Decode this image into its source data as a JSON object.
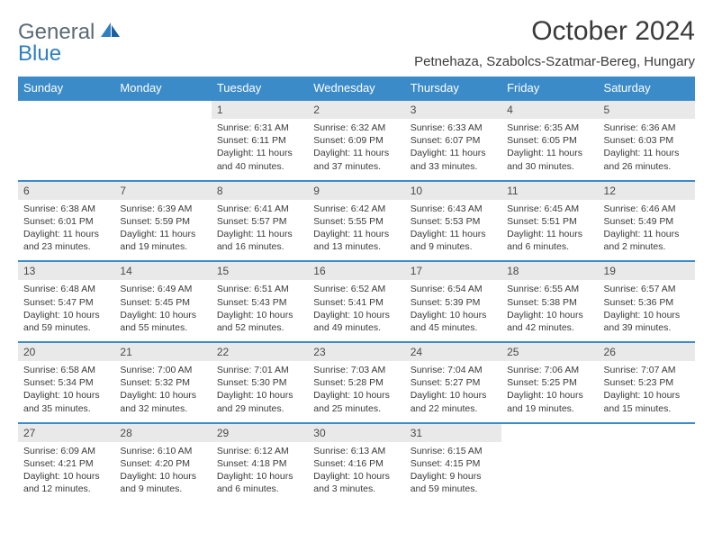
{
  "logo": {
    "general": "General",
    "blue": "Blue"
  },
  "title": "October 2024",
  "location": "Petnehaza, Szabolcs-Szatmar-Bereg, Hungary",
  "colors": {
    "header_bg": "#3b8bc9",
    "header_text": "#ffffff",
    "daynum_bg": "#e9e9e9",
    "week_border": "#3b8bc9",
    "text": "#3a3a3a",
    "logo_gray": "#5a6a76",
    "logo_blue": "#2f7fc1"
  },
  "day_labels": [
    "Sunday",
    "Monday",
    "Tuesday",
    "Wednesday",
    "Thursday",
    "Friday",
    "Saturday"
  ],
  "weeks": [
    [
      {
        "n": "",
        "sr": "",
        "ss": "",
        "dl": ""
      },
      {
        "n": "",
        "sr": "",
        "ss": "",
        "dl": ""
      },
      {
        "n": "1",
        "sr": "Sunrise: 6:31 AM",
        "ss": "Sunset: 6:11 PM",
        "dl": "Daylight: 11 hours and 40 minutes."
      },
      {
        "n": "2",
        "sr": "Sunrise: 6:32 AM",
        "ss": "Sunset: 6:09 PM",
        "dl": "Daylight: 11 hours and 37 minutes."
      },
      {
        "n": "3",
        "sr": "Sunrise: 6:33 AM",
        "ss": "Sunset: 6:07 PM",
        "dl": "Daylight: 11 hours and 33 minutes."
      },
      {
        "n": "4",
        "sr": "Sunrise: 6:35 AM",
        "ss": "Sunset: 6:05 PM",
        "dl": "Daylight: 11 hours and 30 minutes."
      },
      {
        "n": "5",
        "sr": "Sunrise: 6:36 AM",
        "ss": "Sunset: 6:03 PM",
        "dl": "Daylight: 11 hours and 26 minutes."
      }
    ],
    [
      {
        "n": "6",
        "sr": "Sunrise: 6:38 AM",
        "ss": "Sunset: 6:01 PM",
        "dl": "Daylight: 11 hours and 23 minutes."
      },
      {
        "n": "7",
        "sr": "Sunrise: 6:39 AM",
        "ss": "Sunset: 5:59 PM",
        "dl": "Daylight: 11 hours and 19 minutes."
      },
      {
        "n": "8",
        "sr": "Sunrise: 6:41 AM",
        "ss": "Sunset: 5:57 PM",
        "dl": "Daylight: 11 hours and 16 minutes."
      },
      {
        "n": "9",
        "sr": "Sunrise: 6:42 AM",
        "ss": "Sunset: 5:55 PM",
        "dl": "Daylight: 11 hours and 13 minutes."
      },
      {
        "n": "10",
        "sr": "Sunrise: 6:43 AM",
        "ss": "Sunset: 5:53 PM",
        "dl": "Daylight: 11 hours and 9 minutes."
      },
      {
        "n": "11",
        "sr": "Sunrise: 6:45 AM",
        "ss": "Sunset: 5:51 PM",
        "dl": "Daylight: 11 hours and 6 minutes."
      },
      {
        "n": "12",
        "sr": "Sunrise: 6:46 AM",
        "ss": "Sunset: 5:49 PM",
        "dl": "Daylight: 11 hours and 2 minutes."
      }
    ],
    [
      {
        "n": "13",
        "sr": "Sunrise: 6:48 AM",
        "ss": "Sunset: 5:47 PM",
        "dl": "Daylight: 10 hours and 59 minutes."
      },
      {
        "n": "14",
        "sr": "Sunrise: 6:49 AM",
        "ss": "Sunset: 5:45 PM",
        "dl": "Daylight: 10 hours and 55 minutes."
      },
      {
        "n": "15",
        "sr": "Sunrise: 6:51 AM",
        "ss": "Sunset: 5:43 PM",
        "dl": "Daylight: 10 hours and 52 minutes."
      },
      {
        "n": "16",
        "sr": "Sunrise: 6:52 AM",
        "ss": "Sunset: 5:41 PM",
        "dl": "Daylight: 10 hours and 49 minutes."
      },
      {
        "n": "17",
        "sr": "Sunrise: 6:54 AM",
        "ss": "Sunset: 5:39 PM",
        "dl": "Daylight: 10 hours and 45 minutes."
      },
      {
        "n": "18",
        "sr": "Sunrise: 6:55 AM",
        "ss": "Sunset: 5:38 PM",
        "dl": "Daylight: 10 hours and 42 minutes."
      },
      {
        "n": "19",
        "sr": "Sunrise: 6:57 AM",
        "ss": "Sunset: 5:36 PM",
        "dl": "Daylight: 10 hours and 39 minutes."
      }
    ],
    [
      {
        "n": "20",
        "sr": "Sunrise: 6:58 AM",
        "ss": "Sunset: 5:34 PM",
        "dl": "Daylight: 10 hours and 35 minutes."
      },
      {
        "n": "21",
        "sr": "Sunrise: 7:00 AM",
        "ss": "Sunset: 5:32 PM",
        "dl": "Daylight: 10 hours and 32 minutes."
      },
      {
        "n": "22",
        "sr": "Sunrise: 7:01 AM",
        "ss": "Sunset: 5:30 PM",
        "dl": "Daylight: 10 hours and 29 minutes."
      },
      {
        "n": "23",
        "sr": "Sunrise: 7:03 AM",
        "ss": "Sunset: 5:28 PM",
        "dl": "Daylight: 10 hours and 25 minutes."
      },
      {
        "n": "24",
        "sr": "Sunrise: 7:04 AM",
        "ss": "Sunset: 5:27 PM",
        "dl": "Daylight: 10 hours and 22 minutes."
      },
      {
        "n": "25",
        "sr": "Sunrise: 7:06 AM",
        "ss": "Sunset: 5:25 PM",
        "dl": "Daylight: 10 hours and 19 minutes."
      },
      {
        "n": "26",
        "sr": "Sunrise: 7:07 AM",
        "ss": "Sunset: 5:23 PM",
        "dl": "Daylight: 10 hours and 15 minutes."
      }
    ],
    [
      {
        "n": "27",
        "sr": "Sunrise: 6:09 AM",
        "ss": "Sunset: 4:21 PM",
        "dl": "Daylight: 10 hours and 12 minutes."
      },
      {
        "n": "28",
        "sr": "Sunrise: 6:10 AM",
        "ss": "Sunset: 4:20 PM",
        "dl": "Daylight: 10 hours and 9 minutes."
      },
      {
        "n": "29",
        "sr": "Sunrise: 6:12 AM",
        "ss": "Sunset: 4:18 PM",
        "dl": "Daylight: 10 hours and 6 minutes."
      },
      {
        "n": "30",
        "sr": "Sunrise: 6:13 AM",
        "ss": "Sunset: 4:16 PM",
        "dl": "Daylight: 10 hours and 3 minutes."
      },
      {
        "n": "31",
        "sr": "Sunrise: 6:15 AM",
        "ss": "Sunset: 4:15 PM",
        "dl": "Daylight: 9 hours and 59 minutes."
      },
      {
        "n": "",
        "sr": "",
        "ss": "",
        "dl": ""
      },
      {
        "n": "",
        "sr": "",
        "ss": "",
        "dl": ""
      }
    ]
  ]
}
